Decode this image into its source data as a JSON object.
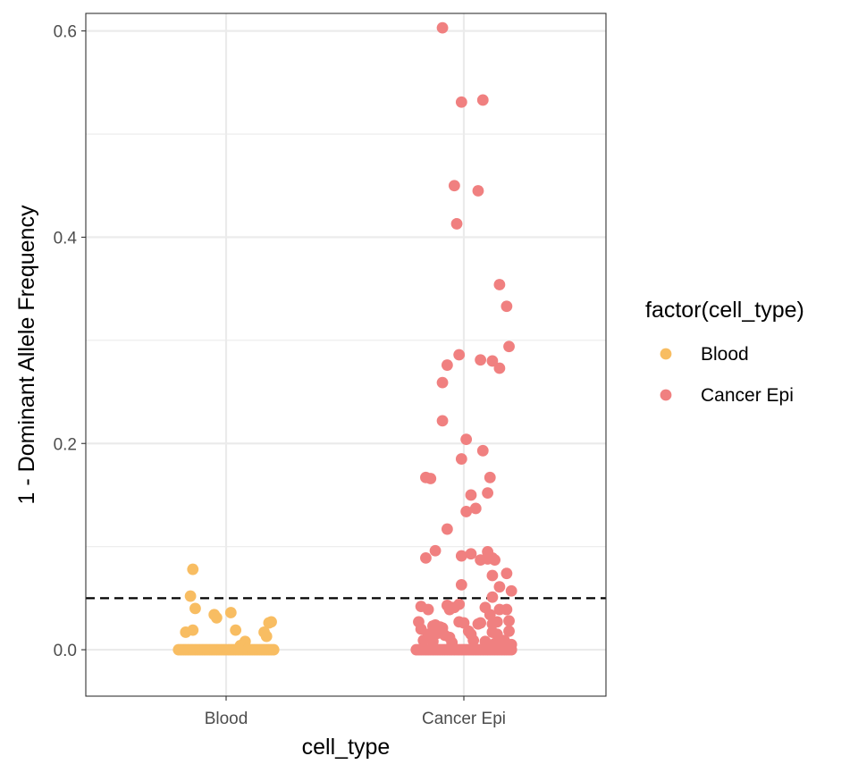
{
  "chart_data": {
    "type": "scatter",
    "title": "",
    "xlabel": "cell_type",
    "ylabel": "1 - Dominant Allele Frequency",
    "categories": [
      "Blood",
      "Cancer Epi"
    ],
    "ylim": [
      -0.045,
      0.617
    ],
    "yticks": [
      0.0,
      0.2,
      0.4,
      0.6
    ],
    "ytick_labels": [
      "0.0",
      "0.2",
      "0.4",
      "0.6"
    ],
    "reference_line": {
      "y": 0.05,
      "style": "dashed",
      "color": "#000000"
    },
    "grid": true,
    "legend": {
      "title": "factor(cell_type)",
      "placement": "right"
    },
    "series": [
      {
        "name": "Blood",
        "color": "#F8BD62",
        "category": "Blood",
        "points": [
          [
            -0.14,
            0.078
          ],
          [
            -0.15,
            0.052
          ],
          [
            -0.13,
            0.04
          ],
          [
            -0.17,
            0.017
          ],
          [
            -0.14,
            0.019
          ],
          [
            -0.05,
            0.034
          ],
          [
            -0.04,
            0.031
          ],
          [
            0.02,
            0.036
          ],
          [
            0.04,
            0.019
          ],
          [
            0.08,
            0.008
          ],
          [
            0.06,
            0.004
          ],
          [
            0.16,
            0.017
          ],
          [
            0.17,
            0.013
          ],
          [
            0.18,
            0.026
          ],
          [
            0.19,
            0.027
          ],
          [
            -0.2,
            0.0
          ],
          [
            -0.19,
            0.0
          ],
          [
            -0.18,
            0.0
          ],
          [
            -0.17,
            0.0
          ],
          [
            -0.16,
            0.0
          ],
          [
            -0.15,
            0.0
          ],
          [
            -0.14,
            0.0
          ],
          [
            -0.13,
            0.0
          ],
          [
            -0.12,
            0.0
          ],
          [
            -0.11,
            0.0
          ],
          [
            -0.1,
            0.0
          ],
          [
            -0.09,
            0.0
          ],
          [
            -0.08,
            0.0
          ],
          [
            -0.07,
            0.0
          ],
          [
            -0.06,
            0.0
          ],
          [
            -0.05,
            0.0
          ],
          [
            -0.04,
            0.0
          ],
          [
            -0.03,
            0.0
          ],
          [
            -0.02,
            0.0
          ],
          [
            -0.01,
            0.0
          ],
          [
            0.0,
            0.0
          ],
          [
            0.01,
            0.0
          ],
          [
            0.02,
            0.0
          ],
          [
            0.03,
            0.0
          ],
          [
            0.04,
            0.0
          ],
          [
            0.05,
            0.0
          ],
          [
            0.06,
            0.0
          ],
          [
            0.07,
            0.0
          ],
          [
            0.08,
            0.0
          ],
          [
            0.09,
            0.0
          ],
          [
            0.1,
            0.0
          ],
          [
            0.11,
            0.0
          ],
          [
            0.12,
            0.0
          ],
          [
            0.13,
            0.0
          ],
          [
            0.14,
            0.0
          ],
          [
            0.15,
            0.0
          ],
          [
            0.16,
            0.0
          ],
          [
            0.17,
            0.0
          ],
          [
            0.18,
            0.0
          ],
          [
            0.19,
            0.0
          ],
          [
            0.2,
            0.0
          ]
        ]
      },
      {
        "name": "Cancer Epi",
        "color": "#F08080",
        "category": "Cancer Epi",
        "points": [
          [
            -0.09,
            0.603
          ],
          [
            -0.01,
            0.531
          ],
          [
            0.08,
            0.533
          ],
          [
            -0.04,
            0.45
          ],
          [
            0.06,
            0.445
          ],
          [
            -0.03,
            0.413
          ],
          [
            0.15,
            0.354
          ],
          [
            0.18,
            0.333
          ],
          [
            0.19,
            0.294
          ],
          [
            -0.02,
            0.286
          ],
          [
            0.07,
            0.281
          ],
          [
            0.12,
            0.28
          ],
          [
            0.15,
            0.273
          ],
          [
            -0.07,
            0.276
          ],
          [
            -0.09,
            0.259
          ],
          [
            -0.09,
            0.222
          ],
          [
            0.01,
            0.204
          ],
          [
            -0.01,
            0.185
          ],
          [
            0.08,
            0.193
          ],
          [
            -0.16,
            0.167
          ],
          [
            -0.14,
            0.166
          ],
          [
            0.11,
            0.167
          ],
          [
            0.1,
            0.152
          ],
          [
            0.03,
            0.15
          ],
          [
            0.05,
            0.137
          ],
          [
            0.01,
            0.134
          ],
          [
            -0.07,
            0.117
          ],
          [
            -0.12,
            0.096
          ],
          [
            -0.16,
            0.089
          ],
          [
            -0.01,
            0.091
          ],
          [
            0.03,
            0.093
          ],
          [
            0.07,
            0.087
          ],
          [
            0.1,
            0.095
          ],
          [
            0.1,
            0.088
          ],
          [
            0.12,
            0.089
          ],
          [
            0.13,
            0.087
          ],
          [
            0.18,
            0.074
          ],
          [
            0.12,
            0.072
          ],
          [
            -0.01,
            0.063
          ],
          [
            0.15,
            0.061
          ],
          [
            0.2,
            0.057
          ],
          [
            0.12,
            0.051
          ],
          [
            -0.18,
            0.042
          ],
          [
            -0.07,
            0.043
          ],
          [
            -0.05,
            0.041
          ],
          [
            -0.04,
            0.041
          ],
          [
            -0.02,
            0.044
          ],
          [
            -0.15,
            0.039
          ],
          [
            -0.06,
            0.039
          ],
          [
            0.09,
            0.041
          ],
          [
            0.11,
            0.034
          ],
          [
            0.15,
            0.039
          ],
          [
            0.18,
            0.039
          ],
          [
            -0.19,
            0.027
          ],
          [
            -0.13,
            0.023
          ],
          [
            -0.12,
            0.024
          ],
          [
            -0.1,
            0.022
          ],
          [
            -0.09,
            0.021
          ],
          [
            -0.02,
            0.027
          ],
          [
            0.0,
            0.026
          ],
          [
            0.06,
            0.025
          ],
          [
            0.07,
            0.026
          ],
          [
            0.12,
            0.025
          ],
          [
            0.14,
            0.027
          ],
          [
            0.19,
            0.028
          ],
          [
            -0.18,
            0.02
          ],
          [
            -0.15,
            0.015
          ],
          [
            -0.11,
            0.016
          ],
          [
            -0.08,
            0.014
          ],
          [
            -0.06,
            0.012
          ],
          [
            0.02,
            0.018
          ],
          [
            0.03,
            0.015
          ],
          [
            0.12,
            0.017
          ],
          [
            0.14,
            0.015
          ],
          [
            0.19,
            0.018
          ],
          [
            -0.17,
            0.009
          ],
          [
            -0.13,
            0.008
          ],
          [
            -0.05,
            0.007
          ],
          [
            0.04,
            0.009
          ],
          [
            0.09,
            0.008
          ],
          [
            0.13,
            0.006
          ],
          [
            0.17,
            0.009
          ],
          [
            0.2,
            0.005
          ],
          [
            -0.2,
            0.0
          ],
          [
            -0.19,
            0.0
          ],
          [
            -0.18,
            0.0
          ],
          [
            -0.17,
            0.0
          ],
          [
            -0.16,
            0.0
          ],
          [
            -0.15,
            0.0
          ],
          [
            -0.14,
            0.0
          ],
          [
            -0.13,
            0.0
          ],
          [
            -0.12,
            0.0
          ],
          [
            -0.11,
            0.0
          ],
          [
            -0.1,
            0.0
          ],
          [
            -0.09,
            0.0
          ],
          [
            -0.08,
            0.0
          ],
          [
            -0.07,
            0.0
          ],
          [
            -0.06,
            0.0
          ],
          [
            -0.05,
            0.0
          ],
          [
            -0.04,
            0.0
          ],
          [
            -0.03,
            0.0
          ],
          [
            -0.02,
            0.0
          ],
          [
            -0.01,
            0.0
          ],
          [
            0.0,
            0.0
          ],
          [
            0.01,
            0.0
          ],
          [
            0.02,
            0.0
          ],
          [
            0.03,
            0.0
          ],
          [
            0.04,
            0.0
          ],
          [
            0.05,
            0.0
          ],
          [
            0.06,
            0.0
          ],
          [
            0.07,
            0.0
          ],
          [
            0.08,
            0.0
          ],
          [
            0.09,
            0.0
          ],
          [
            0.1,
            0.0
          ],
          [
            0.11,
            0.0
          ],
          [
            0.12,
            0.0
          ],
          [
            0.13,
            0.0
          ],
          [
            0.14,
            0.0
          ],
          [
            0.15,
            0.0
          ],
          [
            0.16,
            0.0
          ],
          [
            0.17,
            0.0
          ],
          [
            0.18,
            0.0
          ],
          [
            0.19,
            0.0
          ],
          [
            0.2,
            0.0
          ]
        ]
      }
    ]
  }
}
